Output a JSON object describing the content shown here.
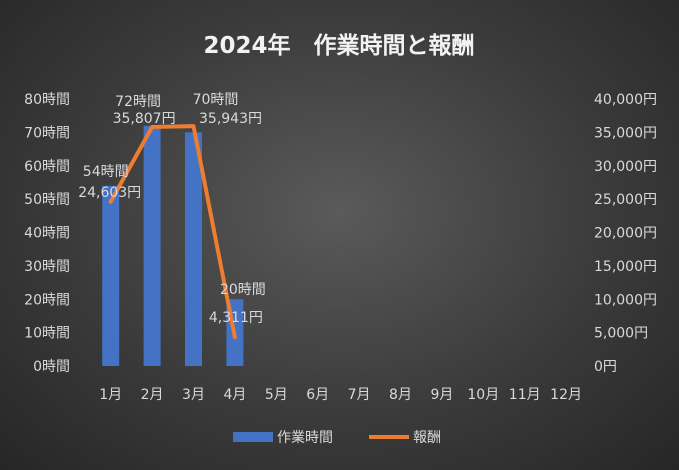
{
  "chart_data": {
    "type": "bar",
    "title": "2024年　作業時間と報酬",
    "categories": [
      "1月",
      "2月",
      "3月",
      "4月",
      "5月",
      "6月",
      "7月",
      "8月",
      "9月",
      "10月",
      "11月",
      "12月"
    ],
    "series": [
      {
        "name": "作業時間",
        "type": "bar",
        "axis": "left",
        "color": "#4472c4",
        "values": [
          54,
          72,
          70,
          20,
          null,
          null,
          null,
          null,
          null,
          null,
          null,
          null
        ],
        "labels": [
          "54時間",
          "72時間",
          "70時間",
          "20時間"
        ]
      },
      {
        "name": "報酬",
        "type": "line",
        "axis": "right",
        "color": "#ed7d31",
        "values": [
          24603,
          35807,
          35943,
          4311,
          null,
          null,
          null,
          null,
          null,
          null,
          null,
          null
        ],
        "labels": [
          "24,603円",
          "35,807円",
          "35,943円",
          "4,311円"
        ]
      }
    ],
    "y_left": {
      "ylim": [
        0,
        80
      ],
      "ticks": [
        "0時間",
        "10時間",
        "20時間",
        "30時間",
        "40時間",
        "50時間",
        "60時間",
        "70時間",
        "80時間"
      ]
    },
    "y_right": {
      "ylim": [
        0,
        40000
      ],
      "ticks": [
        "0円",
        "5,000円",
        "10,000円",
        "15,000円",
        "20,000円",
        "25,000円",
        "30,000円",
        "35,000円",
        "40,000円"
      ]
    },
    "grid": false,
    "legend": "bottom"
  }
}
